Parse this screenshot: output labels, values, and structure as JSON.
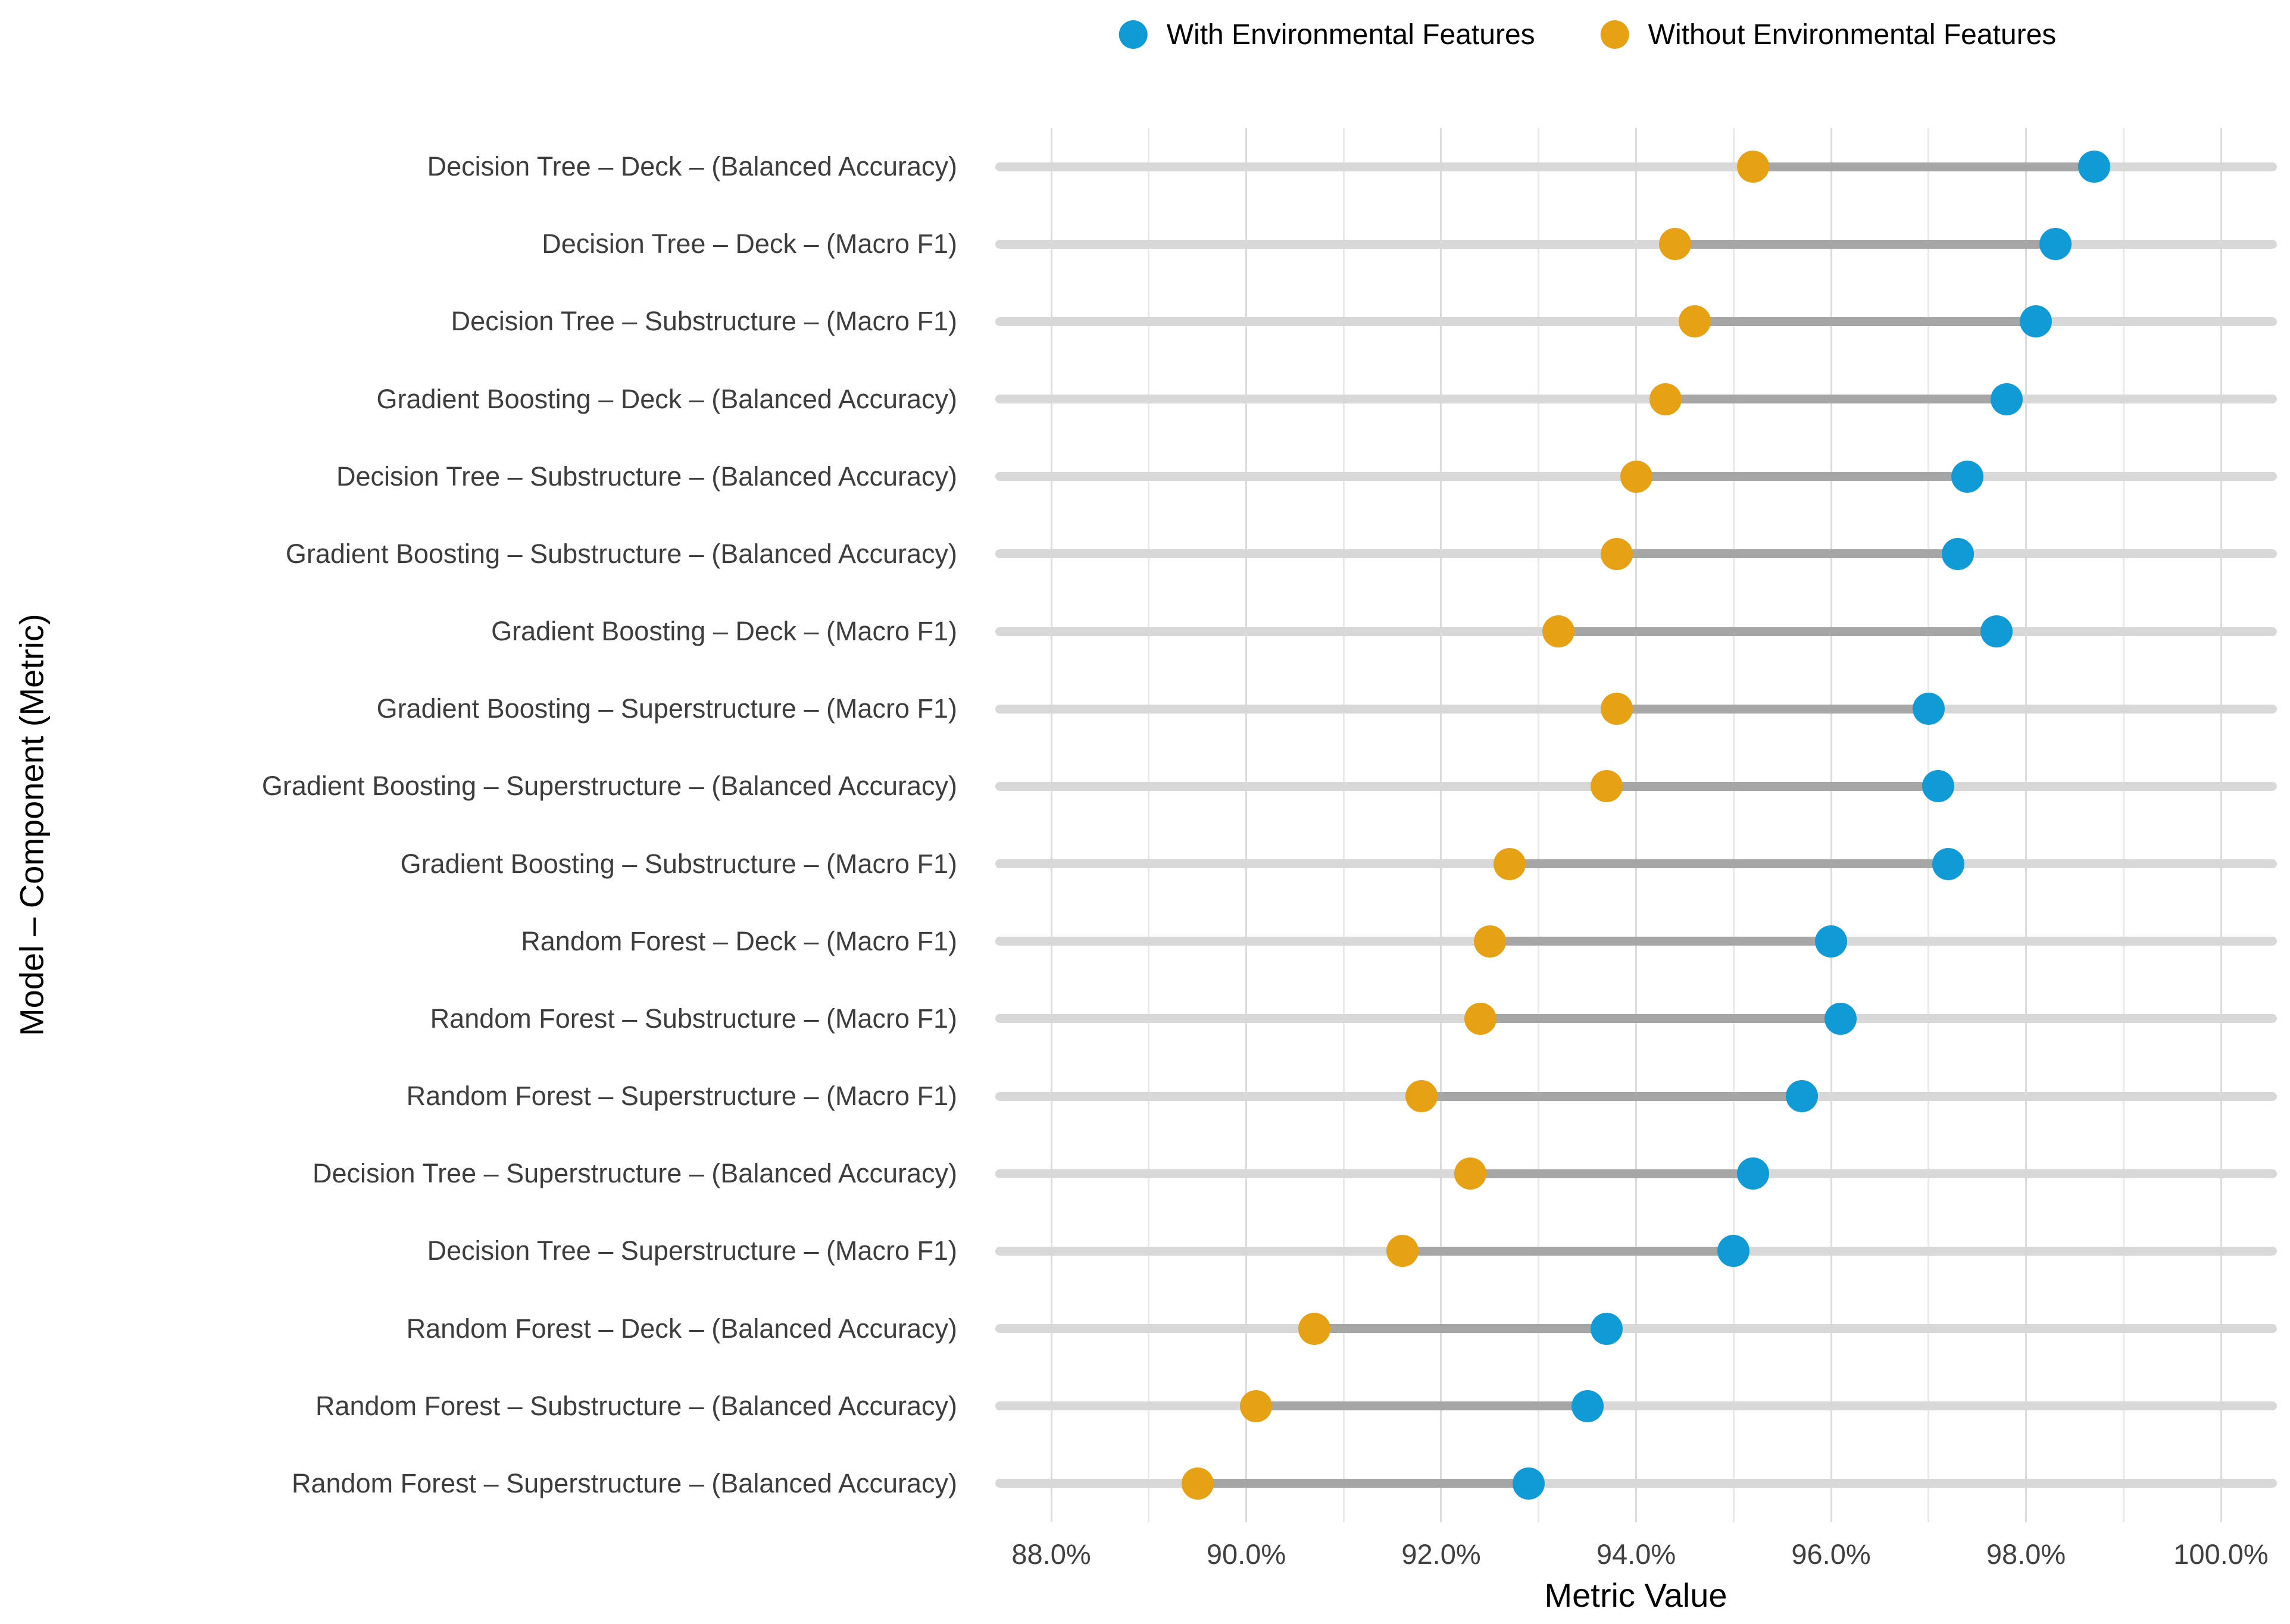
{
  "page": {
    "background": "#ffffff"
  },
  "legend": {
    "items": [
      {
        "key": "with",
        "label": "With Environmental Features",
        "color": "#119bd6"
      },
      {
        "key": "without",
        "label": "Without Environmental Features",
        "color": "#e7a114"
      }
    ]
  },
  "axes": {
    "x": {
      "title": "Metric Value",
      "min": 88,
      "max": 100,
      "major_tick_step": 2,
      "minor_grid_step": 1,
      "tick_values": [
        88,
        90,
        92,
        94,
        96,
        98,
        100
      ],
      "tick_labels": [
        "88.0%",
        "90.0%",
        "92.0%",
        "94.0%",
        "96.0%",
        "98.0%",
        "100.0%"
      ]
    },
    "y": {
      "title": "Model – Component (Metric)"
    }
  },
  "chart_data": {
    "type": "dumbbell",
    "orientation": "horizontal",
    "unit": "percent",
    "title": "",
    "xlabel": "Metric Value",
    "ylabel": "Model – Component (Metric)",
    "xlim": [
      88,
      100
    ],
    "grid": true,
    "legend_position": "top-center",
    "series": [
      {
        "name": "With Environmental Features",
        "color": "#119bd6"
      },
      {
        "name": "Without Environmental Features",
        "color": "#e7a114"
      }
    ],
    "rows": [
      {
        "label": "Decision Tree – Deck – (Balanced Accuracy)",
        "without": 95.2,
        "with": 98.7
      },
      {
        "label": "Decision Tree – Deck – (Macro F1)",
        "without": 94.4,
        "with": 98.3
      },
      {
        "label": "Decision Tree – Substructure – (Macro F1)",
        "without": 94.6,
        "with": 98.1
      },
      {
        "label": "Gradient Boosting – Deck – (Balanced Accuracy)",
        "without": 94.3,
        "with": 97.8
      },
      {
        "label": "Decision Tree – Substructure – (Balanced Accuracy)",
        "without": 94.0,
        "with": 97.4
      },
      {
        "label": "Gradient Boosting – Substructure – (Balanced Accuracy)",
        "without": 93.8,
        "with": 97.3
      },
      {
        "label": "Gradient Boosting – Deck – (Macro F1)",
        "without": 93.2,
        "with": 97.7
      },
      {
        "label": "Gradient Boosting – Superstructure – (Macro F1)",
        "without": 93.8,
        "with": 97.0
      },
      {
        "label": "Gradient Boosting – Superstructure – (Balanced Accuracy)",
        "without": 93.7,
        "with": 97.1
      },
      {
        "label": "Gradient Boosting – Substructure – (Macro F1)",
        "without": 92.7,
        "with": 97.2
      },
      {
        "label": "Random Forest – Deck – (Macro F1)",
        "without": 92.5,
        "with": 96.0
      },
      {
        "label": "Random Forest – Substructure – (Macro F1)",
        "without": 92.4,
        "with": 96.1
      },
      {
        "label": "Random Forest – Superstructure – (Macro F1)",
        "without": 91.8,
        "with": 95.7
      },
      {
        "label": "Decision Tree – Superstructure – (Balanced Accuracy)",
        "without": 92.3,
        "with": 95.2
      },
      {
        "label": "Decision Tree – Superstructure – (Macro F1)",
        "without": 91.6,
        "with": 95.0
      },
      {
        "label": "Random Forest – Deck – (Balanced Accuracy)",
        "without": 90.7,
        "with": 93.7
      },
      {
        "label": "Random Forest – Substructure – (Balanced Accuracy)",
        "without": 90.1,
        "with": 93.5
      },
      {
        "label": "Random Forest – Superstructure – (Balanced Accuracy)",
        "without": 89.5,
        "with": 92.9
      }
    ]
  },
  "colors": {
    "with_dot": "#119bd6",
    "without_dot": "#e7a114",
    "connector": "#a6a6a6",
    "track": "#d8d8d8",
    "grid_major": "#dadcde",
    "grid_minor": "#e7e9ea",
    "tick_label": "#404040",
    "category_label": "#3d3d3d",
    "title_text": "#000000"
  }
}
